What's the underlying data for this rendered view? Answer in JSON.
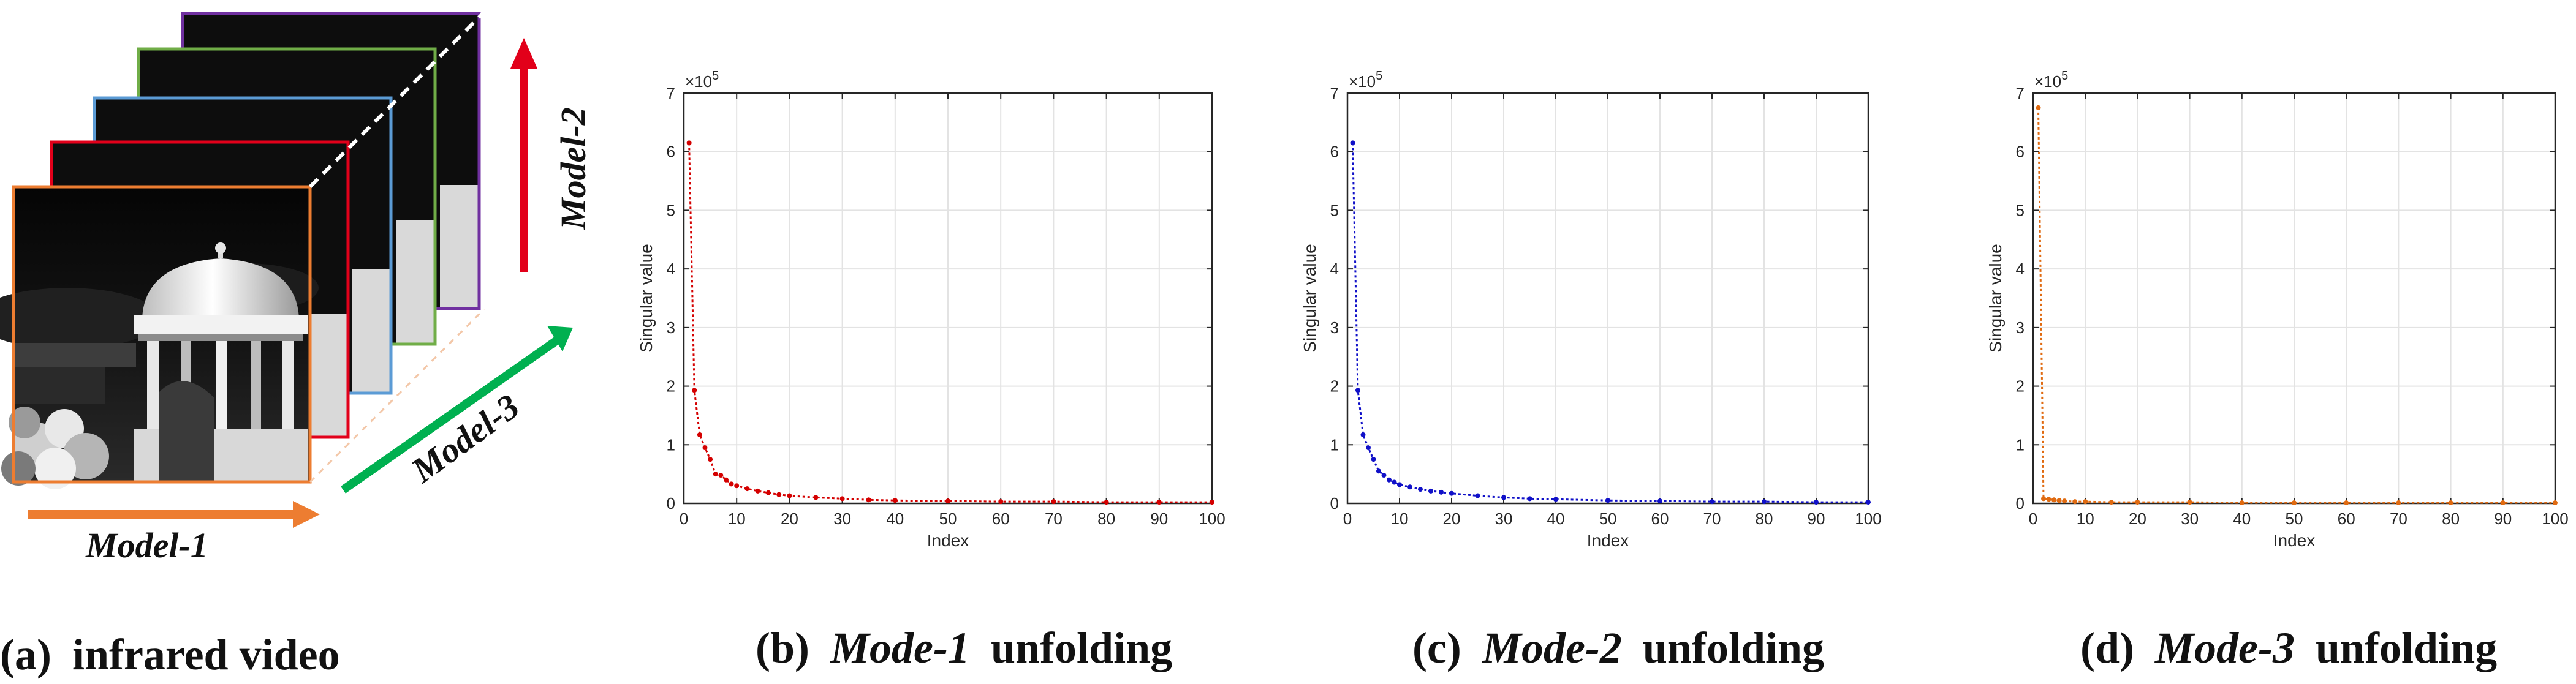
{
  "panel_a": {
    "caption_prefix": "(a)",
    "caption_text": "infrared video",
    "arrows": [
      {
        "label": "Model-1",
        "color": "#ED7D31"
      },
      {
        "label": "Model-2",
        "color": "#E2001A"
      },
      {
        "label": "Model-3",
        "color": "#00B050"
      }
    ],
    "frame_colors": [
      "#7030A0",
      "#70AD47",
      "#5B9BD5",
      "#E2001A",
      "#ED7D31"
    ]
  },
  "captions": [
    {
      "prefix": "(b)",
      "mode": "Mode-1",
      "suffix": "unfolding"
    },
    {
      "prefix": "(c)",
      "mode": "Mode-2",
      "suffix": "unfolding"
    },
    {
      "prefix": "(d)",
      "mode": "Mode-3",
      "suffix": "unfolding"
    }
  ],
  "chart_data": [
    {
      "type": "line",
      "xlabel": "Index",
      "ylabel": "Singular value",
      "exponent": "×10",
      "exponent_power": "5",
      "xlim": [
        0,
        100
      ],
      "ylim": [
        0,
        7
      ],
      "xticks": [
        0,
        10,
        20,
        30,
        40,
        50,
        60,
        70,
        80,
        90,
        100
      ],
      "yticks": [
        0,
        1,
        2,
        3,
        4,
        5,
        6,
        7
      ],
      "grid": true,
      "color": "#D40000",
      "x": [
        1,
        2,
        3,
        4,
        5,
        6,
        7,
        8,
        9,
        10,
        12,
        14,
        16,
        18,
        20,
        25,
        30,
        35,
        40,
        50,
        60,
        70,
        80,
        90,
        100
      ],
      "y": [
        6.15,
        1.93,
        1.17,
        0.95,
        0.75,
        0.5,
        0.48,
        0.4,
        0.33,
        0.3,
        0.25,
        0.21,
        0.18,
        0.15,
        0.13,
        0.1,
        0.08,
        0.06,
        0.05,
        0.04,
        0.03,
        0.03,
        0.02,
        0.02,
        0.02
      ]
    },
    {
      "type": "line",
      "xlabel": "Index",
      "ylabel": "Singular value",
      "exponent": "×10",
      "exponent_power": "5",
      "xlim": [
        0,
        100
      ],
      "ylim": [
        0,
        7
      ],
      "xticks": [
        0,
        10,
        20,
        30,
        40,
        50,
        60,
        70,
        80,
        90,
        100
      ],
      "yticks": [
        0,
        1,
        2,
        3,
        4,
        5,
        6,
        7
      ],
      "grid": true,
      "color": "#1010C8",
      "x": [
        1,
        2,
        3,
        4,
        5,
        6,
        7,
        8,
        9,
        10,
        12,
        14,
        16,
        18,
        20,
        25,
        30,
        35,
        40,
        50,
        60,
        70,
        80,
        90,
        100
      ],
      "y": [
        6.15,
        1.93,
        1.17,
        0.95,
        0.75,
        0.55,
        0.48,
        0.4,
        0.36,
        0.32,
        0.28,
        0.24,
        0.21,
        0.19,
        0.17,
        0.13,
        0.1,
        0.08,
        0.07,
        0.05,
        0.04,
        0.03,
        0.03,
        0.02,
        0.02
      ]
    },
    {
      "type": "line",
      "xlabel": "Index",
      "ylabel": "Singular value",
      "exponent": "×10",
      "exponent_power": "5",
      "xlim": [
        0,
        100
      ],
      "ylim": [
        0,
        7
      ],
      "xticks": [
        0,
        10,
        20,
        30,
        40,
        50,
        60,
        70,
        80,
        90,
        100
      ],
      "yticks": [
        0,
        1,
        2,
        3,
        4,
        5,
        6,
        7
      ],
      "grid": true,
      "color": "#E06A10",
      "x": [
        1,
        2,
        3,
        4,
        5,
        6,
        8,
        10,
        15,
        20,
        30,
        40,
        50,
        60,
        70,
        80,
        90,
        100
      ],
      "y": [
        6.75,
        0.08,
        0.07,
        0.06,
        0.05,
        0.04,
        0.03,
        0.03,
        0.02,
        0.02,
        0.02,
        0.01,
        0.01,
        0.01,
        0.01,
        0.01,
        0.01,
        0.01
      ]
    }
  ]
}
